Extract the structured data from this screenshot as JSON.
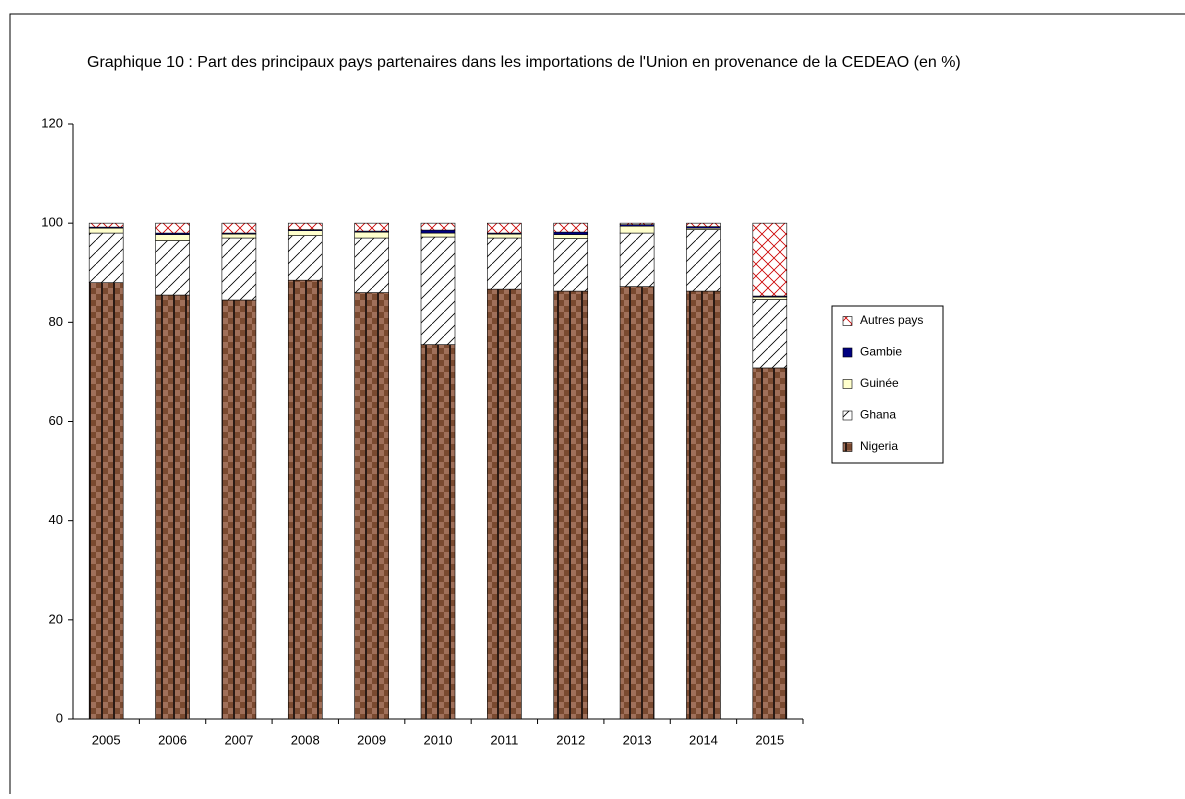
{
  "chart_data": {
    "type": "stacked_bar",
    "title": "Graphique 10 : Part des principaux pays partenaires dans les importations de l'Union en provenance de la CEDEAO (en %)",
    "categories": [
      "2005",
      "2006",
      "2007",
      "2008",
      "2009",
      "2010",
      "2011",
      "2012",
      "2013",
      "2014",
      "2015"
    ],
    "series": [
      {
        "name": "Nigeria",
        "color": "#7a4a30",
        "values": [
          88,
          85.5,
          84.5,
          88.5,
          86,
          75.5,
          86.7,
          86.3,
          87.2,
          86.3,
          70.8
        ]
      },
      {
        "name": "Ghana",
        "color": "#ffffff",
        "values": [
          10,
          11,
          12.5,
          9,
          11,
          21.7,
          10.3,
          10.6,
          10.8,
          12.4,
          13.8
        ]
      },
      {
        "name": "Guinée",
        "color": "#ffffcc",
        "values": [
          1,
          1.2,
          0.8,
          1,
          1.2,
          0.8,
          0.8,
          0.8,
          1.4,
          0.3,
          0.5
        ]
      },
      {
        "name": "Gambie",
        "color": "#000080",
        "values": [
          0.2,
          0.3,
          0.2,
          0.2,
          0.2,
          0.6,
          0.2,
          0.5,
          0.3,
          0.3,
          0.2
        ]
      },
      {
        "name": "Autres pays",
        "color": "#cc0000",
        "values": [
          0.8,
          2,
          2,
          1.3,
          1.6,
          1.4,
          2,
          1.8,
          0.3,
          0.7,
          14.7
        ]
      }
    ],
    "ylim": [
      0,
      120
    ],
    "yticks": [
      0,
      20,
      40,
      60,
      80,
      100,
      120
    ],
    "legend": "right"
  }
}
